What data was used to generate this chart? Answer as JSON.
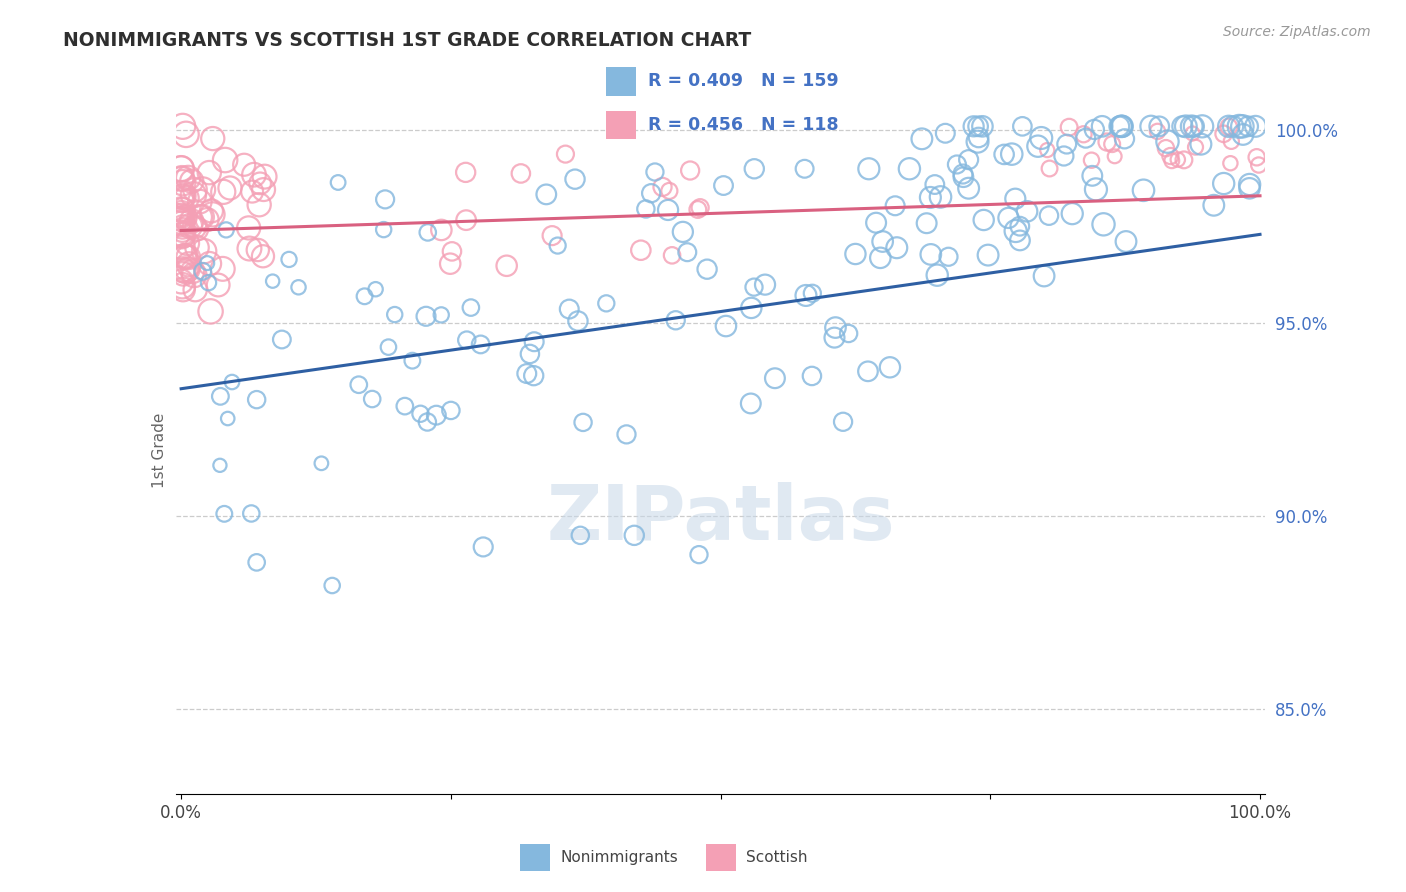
{
  "title": "NONIMMIGRANTS VS SCOTTISH 1ST GRADE CORRELATION CHART",
  "source": "Source: ZipAtlas.com",
  "ylabel": "1st Grade",
  "xlim": [
    -0.005,
    1.005
  ],
  "ylim": [
    0.828,
    1.006
  ],
  "yticks": [
    0.85,
    0.9,
    0.95,
    1.0
  ],
  "ytick_labels": [
    "85.0%",
    "90.0%",
    "95.0%",
    "100.0%"
  ],
  "xticks": [
    0.0,
    0.25,
    0.5,
    0.75,
    1.0
  ],
  "xtick_labels": [
    "0.0%",
    "",
    "",
    "",
    "100.0%"
  ],
  "blue_R": "0.409",
  "blue_N": "159",
  "pink_R": "0.456",
  "pink_N": "118",
  "blue_scatter_color": "#85b8de",
  "pink_scatter_color": "#f4a0b5",
  "blue_line_color": "#2e5fa3",
  "pink_line_color": "#d96080",
  "blue_line_y0": 0.933,
  "blue_line_y1": 0.973,
  "pink_line_y0": 0.974,
  "pink_line_y1": 0.983,
  "watermark_text": "ZIPatlas",
  "watermark_color": "#c8d8e8",
  "legend_box_color": "#ffffff",
  "legend_text_color": "#4472c4",
  "source_color": "#999999",
  "ylabel_color": "#666666",
  "ytick_color": "#4472c4",
  "xtick_color": "#444444",
  "grid_color": "#cccccc"
}
